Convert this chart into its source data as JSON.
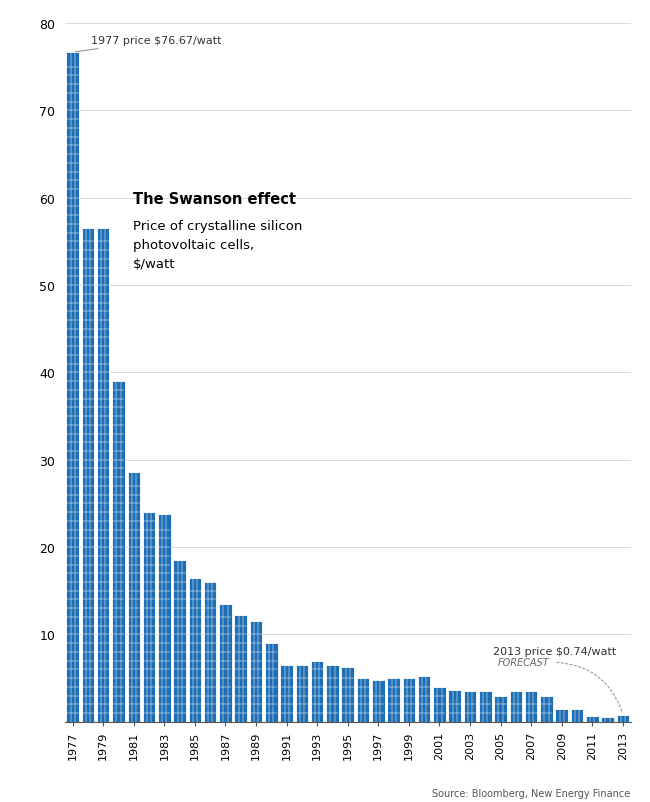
{
  "years": [
    1977,
    1978,
    1979,
    1980,
    1981,
    1982,
    1983,
    1984,
    1985,
    1986,
    1987,
    1988,
    1989,
    1990,
    1991,
    1992,
    1993,
    1994,
    1995,
    1996,
    1997,
    1998,
    1999,
    2000,
    2001,
    2002,
    2003,
    2004,
    2005,
    2006,
    2007,
    2008,
    2009,
    2010,
    2011,
    2012,
    2013
  ],
  "values": [
    76.67,
    56.5,
    56.5,
    39.0,
    28.6,
    24.0,
    23.8,
    18.5,
    16.5,
    16.0,
    13.5,
    12.2,
    11.5,
    9.0,
    6.5,
    6.5,
    7.0,
    6.5,
    6.3,
    5.0,
    4.8,
    5.0,
    5.0,
    5.2,
    4.0,
    3.6,
    3.5,
    3.5,
    3.0,
    3.5,
    3.5,
    3.0,
    1.5,
    1.4,
    0.7,
    0.5,
    0.74
  ],
  "bar_color": "#1e6eb5",
  "bar_edge_color": "#ffffff",
  "background_color": "#ffffff",
  "title_bold": "The Swanson effect",
  "title_normal": "Price of crystalline silicon\nphotovoltaic cells,\n$/watt",
  "annotation_1977_text": "1977 price $76.67/watt",
  "annotation_2013_text": "2013 price $0.74/watt",
  "annotation_2013_sub": "FORECAST",
  "source_text": "Source: Bloomberg, New Energy Finance",
  "ylim": [
    0,
    80
  ],
  "yticks": [
    0,
    10,
    20,
    30,
    40,
    50,
    60,
    70,
    80
  ]
}
